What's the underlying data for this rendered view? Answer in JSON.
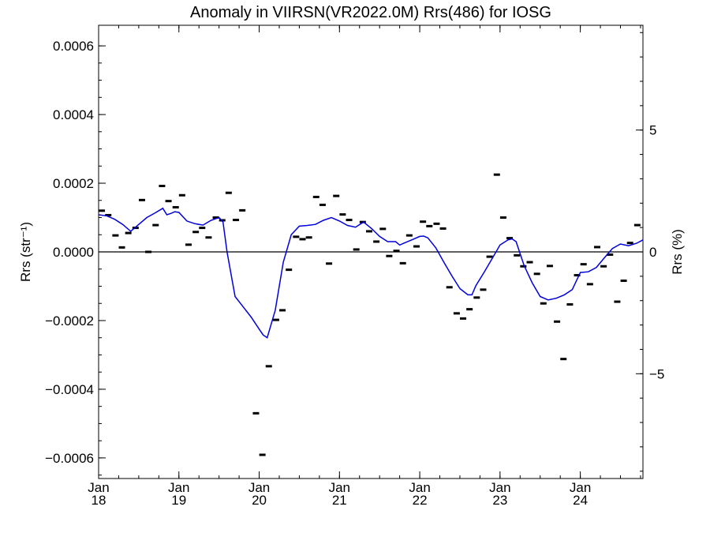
{
  "chart_data": {
    "type": "scatter",
    "title": "Anomaly in VIIRSN(VR2022.0M) Rrs(486) for IOSG",
    "xlabel": "",
    "ylabel_left": "Rrs (str⁻¹)",
    "ylabel_right": "Rrs (%)",
    "ylim": [
      -0.00066,
      0.00066
    ],
    "ylim_right": [
      -9.3,
      9.3
    ],
    "xlim": [
      2018.0,
      2024.78
    ],
    "grid": false,
    "legend": "none",
    "colors": {
      "line": "#0000dd",
      "points": "#000000",
      "zero_line": "#000000"
    },
    "y_ticks_left": [
      {
        "v": 0.0006,
        "label": "0.0006"
      },
      {
        "v": 0.0004,
        "label": "0.0004"
      },
      {
        "v": 0.0002,
        "label": "0.0002"
      },
      {
        "v": 0.0,
        "label": "0.0000"
      },
      {
        "v": -0.0002,
        "label": "−0.0002"
      },
      {
        "v": -0.0004,
        "label": "−0.0004"
      },
      {
        "v": -0.0006,
        "label": "−0.0006"
      }
    ],
    "y_ticks_right": [
      {
        "v": 5,
        "label": "5"
      },
      {
        "v": 0,
        "label": "0"
      },
      {
        "v": -5,
        "label": "−5"
      }
    ],
    "x_ticks": [
      {
        "v": 2018,
        "month": "Jan",
        "year": "18"
      },
      {
        "v": 2019,
        "month": "Jan",
        "year": "19"
      },
      {
        "v": 2020,
        "month": "Jan",
        "year": "20"
      },
      {
        "v": 2021,
        "month": "Jan",
        "year": "21"
      },
      {
        "v": 2022,
        "month": "Jan",
        "year": "22"
      },
      {
        "v": 2023,
        "month": "Jan",
        "year": "23"
      },
      {
        "v": 2024,
        "month": "Jan",
        "year": "24"
      }
    ],
    "series": [
      {
        "kind": "points",
        "x": [
          2018.04,
          2018.12,
          2018.21,
          2018.29,
          2018.37,
          2018.46,
          2018.54,
          2018.62,
          2018.71,
          2018.79,
          2018.87,
          2018.96,
          2019.04,
          2019.12,
          2019.21,
          2019.29,
          2019.37,
          2019.46,
          2019.54,
          2019.62,
          2019.71,
          2019.79,
          2019.96,
          2020.04,
          2020.12,
          2020.21,
          2020.29,
          2020.37,
          2020.46,
          2020.54,
          2020.62,
          2020.71,
          2020.79,
          2020.87,
          2020.96,
          2021.04,
          2021.12,
          2021.21,
          2021.29,
          2021.37,
          2021.46,
          2021.54,
          2021.62,
          2021.71,
          2021.79,
          2021.87,
          2021.96,
          2022.04,
          2022.12,
          2022.21,
          2022.29,
          2022.37,
          2022.46,
          2022.54,
          2022.62,
          2022.71,
          2022.79,
          2022.87,
          2022.96,
          2023.04,
          2023.12,
          2023.21,
          2023.29,
          2023.37,
          2023.46,
          2023.54,
          2023.62,
          2023.71,
          2023.79,
          2023.87,
          2023.96,
          2024.04,
          2024.12,
          2024.21,
          2024.29,
          2024.37,
          2024.46,
          2024.54,
          2024.62,
          2024.71
        ],
        "y": [
          0.00012,
          0.000107,
          4.8e-05,
          1.3e-05,
          5.5e-05,
          7e-05,
          0.000151,
          0.0,
          7.8e-05,
          0.000192,
          0.000148,
          0.00013,
          0.000165,
          2.1e-05,
          5.8e-05,
          7e-05,
          4.2e-05,
          0.0001,
          9.2e-05,
          0.000172,
          9.3e-05,
          0.000121,
          -0.00047,
          -0.000591,
          -0.000333,
          -0.000198,
          -0.00017,
          -5.2e-05,
          4.4e-05,
          3.7e-05,
          4.2e-05,
          0.00016,
          0.000137,
          -3.4e-05,
          0.000163,
          0.000109,
          9.3e-05,
          7e-06,
          8.7e-05,
          6e-05,
          3e-05,
          6.7e-05,
          -1.2e-05,
          3e-06,
          -3.3e-05,
          4.8e-05,
          1.6e-05,
          8.8e-05,
          7.5e-05,
          8.2e-05,
          6.8e-05,
          -0.000103,
          -0.000179,
          -0.000194,
          -0.000167,
          -0.000133,
          -0.00011,
          -1.4e-05,
          0.000225,
          0.0001,
          4e-05,
          -1e-05,
          -4.2e-05,
          -3e-05,
          -6.4e-05,
          -0.00015,
          -4.1e-05,
          -0.000203,
          -0.000312,
          -0.000153,
          -6.8e-05,
          -3.6e-05,
          -9.4e-05,
          1.4e-05,
          -4.2e-05,
          -8e-06,
          -0.000145,
          -8.4e-05,
          2.6e-05,
          7.8e-05
        ]
      },
      {
        "kind": "line",
        "x": [
          2018.0,
          2018.1,
          2018.2,
          2018.3,
          2018.4,
          2018.5,
          2018.6,
          2018.7,
          2018.8,
          2018.85,
          2018.9,
          2018.95,
          2019.0,
          2019.1,
          2019.2,
          2019.3,
          2019.4,
          2019.5,
          2019.55,
          2019.6,
          2019.7,
          2019.8,
          2019.9,
          2020.0,
          2020.05,
          2020.1,
          2020.2,
          2020.3,
          2020.4,
          2020.5,
          2020.6,
          2020.7,
          2020.8,
          2020.9,
          2021.0,
          2021.1,
          2021.2,
          2021.3,
          2021.4,
          2021.5,
          2021.6,
          2021.7,
          2021.75,
          2021.8,
          2021.9,
          2022.0,
          2022.05,
          2022.1,
          2022.2,
          2022.3,
          2022.4,
          2022.5,
          2022.6,
          2022.65,
          2022.7,
          2022.8,
          2022.9,
          2023.0,
          2023.1,
          2023.15,
          2023.2,
          2023.3,
          2023.4,
          2023.5,
          2023.55,
          2023.6,
          2023.7,
          2023.8,
          2023.9,
          2024.0,
          2024.1,
          2024.2,
          2024.3,
          2024.4,
          2024.5,
          2024.6,
          2024.7,
          2024.78
        ],
        "y": [
          0.000108,
          0.000105,
          9.5e-05,
          8e-05,
          6e-05,
          8e-05,
          0.0001,
          0.000113,
          0.000127,
          0.000108,
          0.000112,
          0.000117,
          0.000115,
          9e-05,
          8.2e-05,
          7.8e-05,
          9.2e-05,
          0.0001,
          8.7e-05,
          0.0,
          -0.00013,
          -0.00016,
          -0.00019,
          -0.000225,
          -0.000242,
          -0.00025,
          -0.00017,
          -3e-05,
          5e-05,
          7.5e-05,
          7.7e-05,
          8e-05,
          9.2e-05,
          0.0001,
          9e-05,
          7.7e-05,
          7.2e-05,
          8.7e-05,
          6.8e-05,
          4.5e-05,
          3e-05,
          3e-05,
          2e-05,
          2.5e-05,
          3.5e-05,
          4.5e-05,
          4.6e-05,
          4.1e-05,
          1.2e-05,
          -3e-05,
          -7e-05,
          -0.000107,
          -0.000125,
          -0.000125,
          -9.8e-05,
          -6e-05,
          -2e-05,
          2e-05,
          3.5e-05,
          3.8e-05,
          3e-05,
          -4e-05,
          -9e-05,
          -0.00013,
          -0.000135,
          -0.00014,
          -0.000135,
          -0.000125,
          -0.00011,
          -6e-05,
          -5.8e-05,
          -4.5e-05,
          -1.7e-05,
          1e-05,
          2.3e-05,
          1.8e-05,
          2.5e-05,
          3.5e-05
        ]
      }
    ]
  }
}
